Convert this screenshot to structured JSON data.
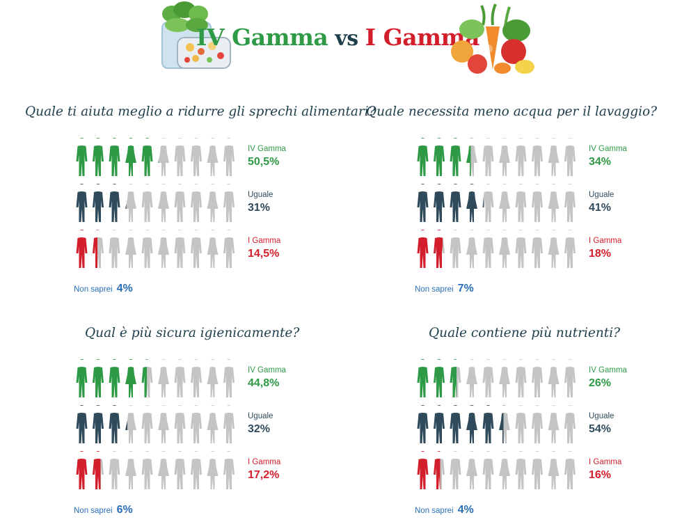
{
  "header": {
    "title_left": "IV Gamma",
    "title_vs": "vs",
    "title_right": "I Gamma"
  },
  "colors": {
    "iv_gamma": "#2e9a45",
    "uguale": "#2f4a5a",
    "i_gamma": "#d31f2b",
    "empty": "#c4c4c4",
    "non_saprei": "#2a6fb7",
    "question": "#1e3d4a"
  },
  "chart_data": [
    {
      "type": "pictogram",
      "title": "Quale ti aiuta meglio a ridurre gli sprechi alimentari?",
      "icons_per_row": 10,
      "categories": [
        "IV Gamma",
        "Uguale",
        "I Gamma"
      ],
      "values": [
        50.5,
        31,
        14.5
      ],
      "labels": [
        "50,5%",
        "31%",
        "14,5%"
      ],
      "non_saprei": {
        "label": "Non saprei",
        "value": 4,
        "text": "4%"
      }
    },
    {
      "type": "pictogram",
      "title": "Quale necessita meno acqua per il lavaggio?",
      "icons_per_row": 10,
      "categories": [
        "IV Gamma",
        "Uguale",
        "I Gamma"
      ],
      "values": [
        34,
        41,
        18
      ],
      "labels": [
        "34%",
        "41%",
        "18%"
      ],
      "non_saprei": {
        "label": "Non saprei",
        "value": 7,
        "text": "7%"
      }
    },
    {
      "type": "pictogram",
      "title": "Qual è più sicura igienicamente?",
      "icons_per_row": 10,
      "categories": [
        "IV Gamma",
        "Uguale",
        "I Gamma"
      ],
      "values": [
        44.8,
        32,
        17.2
      ],
      "labels": [
        "44,8%",
        "32%",
        "17,2%"
      ],
      "non_saprei": {
        "label": "Non saprei",
        "value": 6,
        "text": "6%"
      }
    },
    {
      "type": "pictogram",
      "title": "Quale contiene più nutrienti?",
      "icons_per_row": 10,
      "categories": [
        "IV Gamma",
        "Uguale",
        "I Gamma"
      ],
      "values": [
        26,
        54,
        16
      ],
      "labels": [
        "26%",
        "54%",
        "16%"
      ],
      "non_saprei": {
        "label": "Non saprei",
        "value": 4,
        "text": "4%"
      }
    }
  ]
}
